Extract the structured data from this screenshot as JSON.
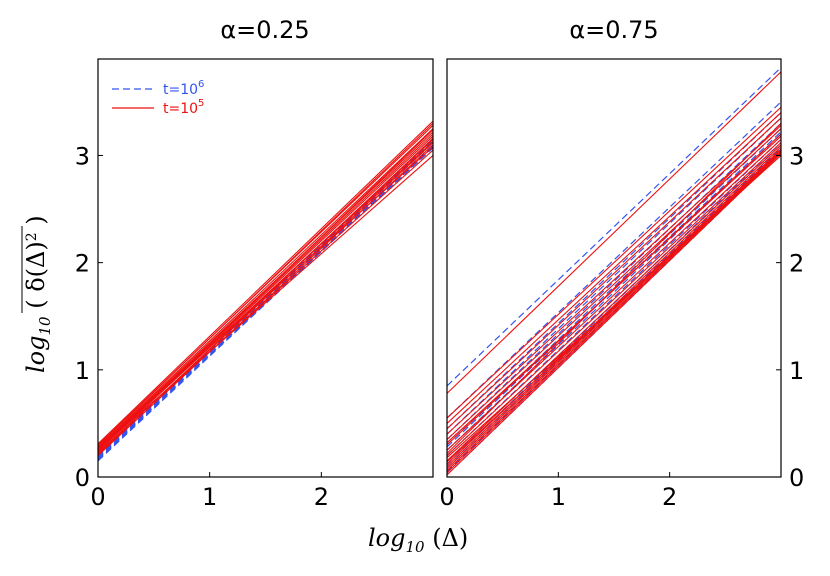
{
  "colors": {
    "t1e6": "#3355ee",
    "t1e5": "#ee1111"
  },
  "chart_data": [
    {
      "type": "line",
      "title": "α=0.25",
      "xlabel": "log10(Δ)",
      "ylabel": "log10(δ(Δ)²)",
      "xlim": [
        0,
        3
      ],
      "ylim": [
        0,
        3.9
      ],
      "xticks": [
        "0",
        "1",
        "2"
      ],
      "yticks": [
        "0",
        "1",
        "2",
        "3"
      ],
      "legend": {
        "position": "top-left",
        "entries": [
          {
            "prefix": "t=10",
            "exp": "6",
            "style": "dashed",
            "color": "#3355ee"
          },
          {
            "prefix": "t=10",
            "exp": "5",
            "style": "solid",
            "color": "#ee1111"
          }
        ]
      },
      "series": [
        {
          "name": "t=1e6",
          "style": "dashed",
          "color": "#3355ee",
          "lines": [
            [
              0.15,
              3.08
            ],
            [
              0.17,
              3.1
            ],
            [
              0.18,
              3.12
            ],
            [
              0.19,
              3.13
            ],
            [
              0.2,
              3.14
            ],
            [
              0.16,
              3.09
            ],
            [
              0.21,
              3.15
            ],
            [
              0.17,
              3.07
            ]
          ]
        },
        {
          "name": "t=1e5",
          "style": "solid",
          "color": "#ee1111",
          "lines": [
            [
              0.2,
              3.1
            ],
            [
              0.22,
              3.12
            ],
            [
              0.24,
              3.15
            ],
            [
              0.25,
              3.18
            ],
            [
              0.26,
              3.2
            ],
            [
              0.27,
              3.22
            ],
            [
              0.28,
              3.25
            ],
            [
              0.3,
              3.28
            ],
            [
              0.23,
              3.05
            ],
            [
              0.25,
              3.0
            ],
            [
              0.29,
              3.3
            ],
            [
              0.31,
              3.32
            ],
            [
              0.21,
              3.16
            ],
            [
              0.26,
              3.13
            ],
            [
              0.24,
              3.24
            ],
            [
              0.28,
              3.08
            ]
          ]
        }
      ]
    },
    {
      "type": "line",
      "title": "α=0.75",
      "xlabel": "log10(Δ)",
      "ylabel": "log10(δ(Δ)²)",
      "xlim": [
        0,
        3
      ],
      "ylim": [
        0,
        3.9
      ],
      "xticks": [
        "0",
        "1",
        "2"
      ],
      "yticks": [
        "0",
        "1",
        "2",
        "3"
      ],
      "series": [
        {
          "name": "t=1e6",
          "style": "dashed",
          "color": "#3355ee",
          "lines": [
            [
              0.85,
              3.82
            ],
            [
              0.55,
              3.5
            ],
            [
              0.45,
              3.4
            ],
            [
              0.4,
              3.35
            ],
            [
              0.35,
              3.3
            ],
            [
              0.3,
              3.25
            ],
            [
              0.25,
              3.2
            ],
            [
              0.2,
              3.15
            ],
            [
              0.15,
              3.1
            ],
            [
              0.1,
              3.07
            ],
            [
              0.05,
              3.04
            ],
            [
              0.02,
              3.02
            ],
            [
              0.12,
              3.12
            ],
            [
              0.08,
              3.06
            ],
            [
              0.28,
              3.22
            ]
          ]
        },
        {
          "name": "t=1e5",
          "style": "solid",
          "color": "#ee1111",
          "lines": [
            [
              0.78,
              3.78
            ],
            [
              0.55,
              3.45
            ],
            [
              0.5,
              3.4
            ],
            [
              0.45,
              3.35
            ],
            [
              0.4,
              3.28
            ],
            [
              0.35,
              3.25
            ],
            [
              0.3,
              3.2
            ],
            [
              0.25,
              3.15
            ],
            [
              0.2,
              3.12
            ],
            [
              0.15,
              3.1
            ],
            [
              0.12,
              3.08
            ],
            [
              0.1,
              3.06
            ],
            [
              0.08,
              3.05
            ],
            [
              0.06,
              3.04
            ],
            [
              0.04,
              3.03
            ],
            [
              0.02,
              3.02
            ],
            [
              0.18,
              3.0
            ],
            [
              0.14,
              3.02
            ],
            [
              0.22,
              3.3
            ],
            [
              0.32,
              3.18
            ]
          ]
        }
      ]
    }
  ]
}
